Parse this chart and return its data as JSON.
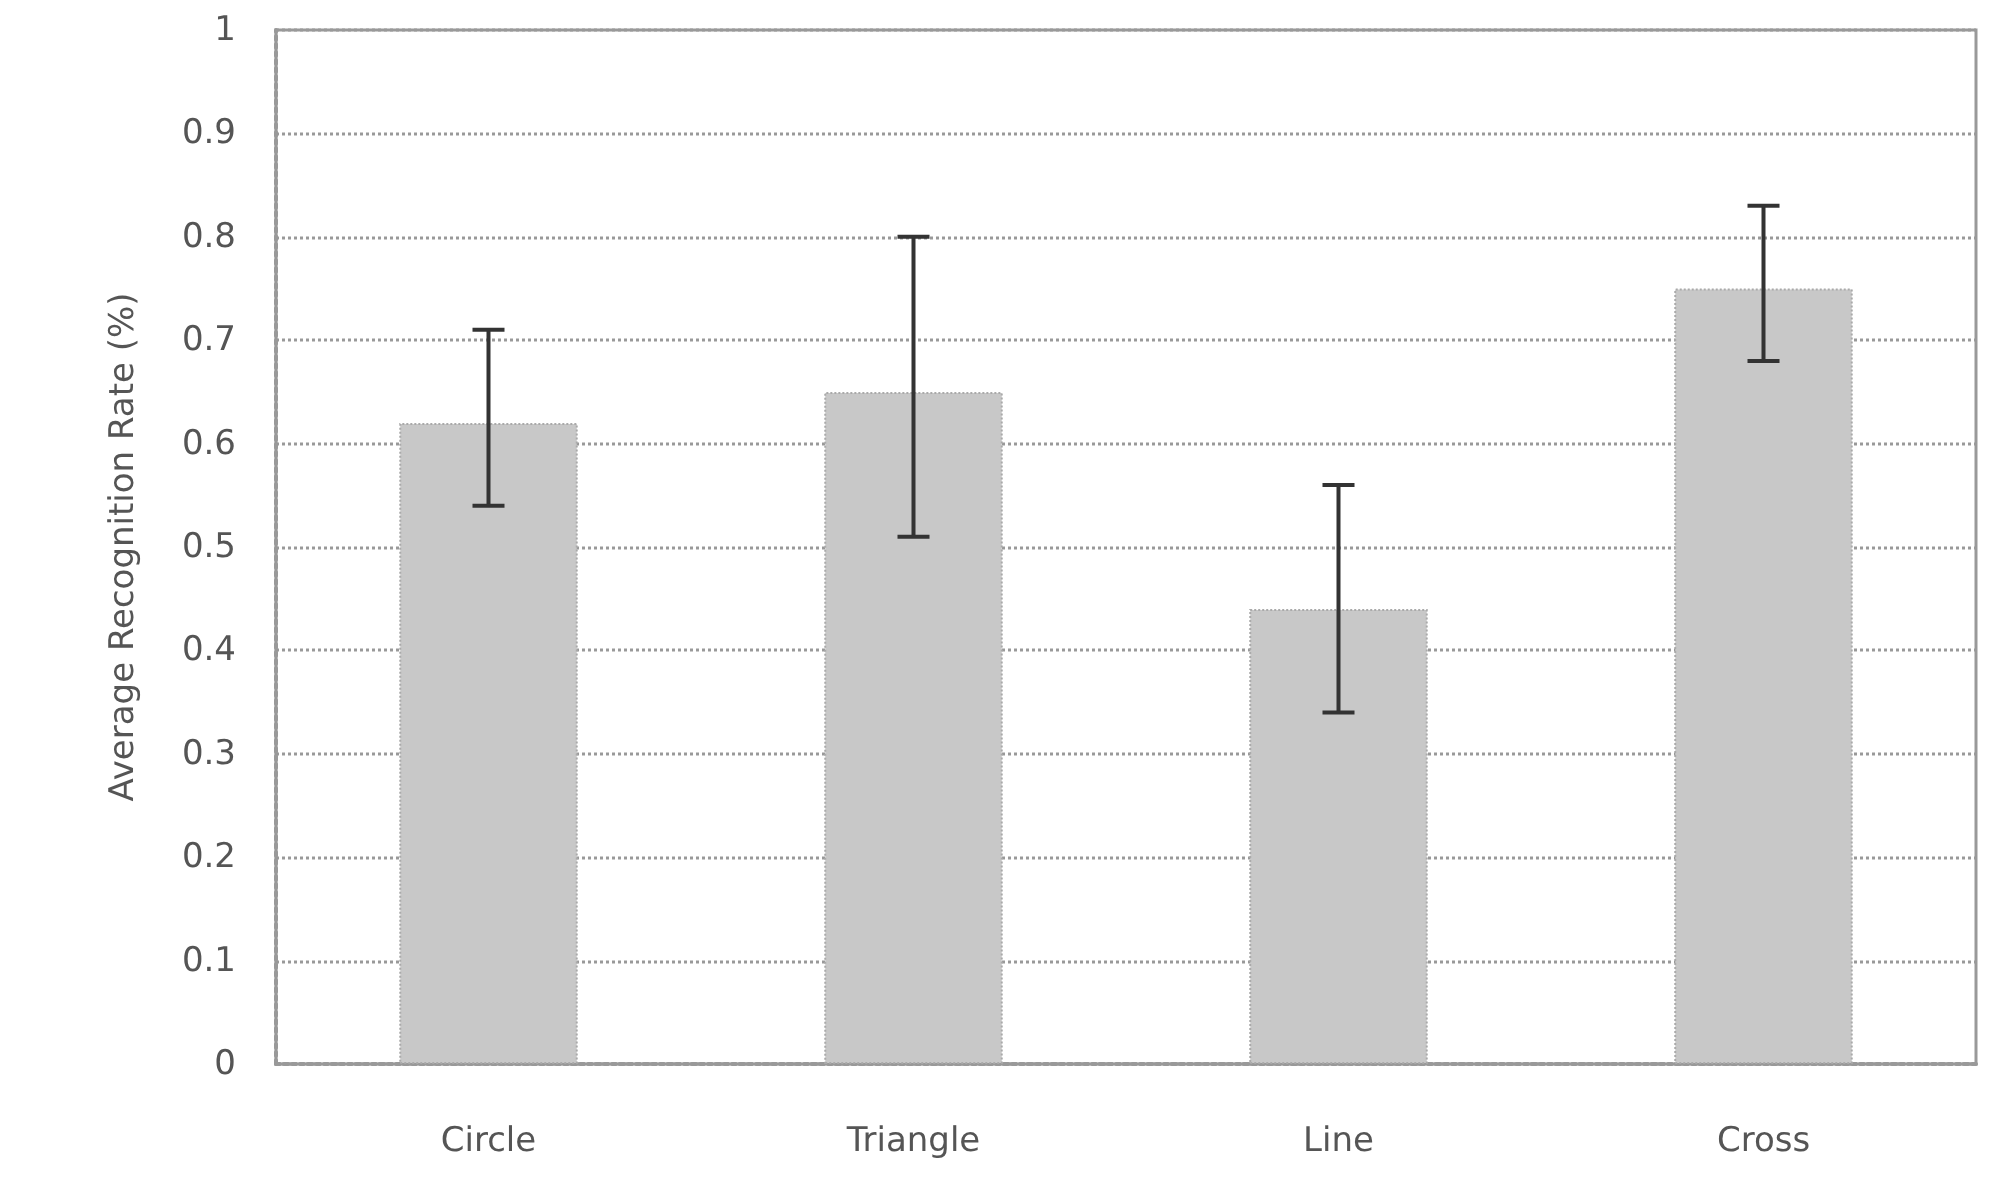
{
  "chart_data": {
    "type": "bar",
    "ylabel": "Average Recognition Rate (%)",
    "categories": [
      "Circle",
      "Triangle",
      "Line",
      "Cross"
    ],
    "values": [
      0.62,
      0.65,
      0.44,
      0.75
    ],
    "errors": [
      [
        0.54,
        0.71
      ],
      [
        0.51,
        0.8
      ],
      [
        0.34,
        0.56
      ],
      [
        0.68,
        0.83
      ]
    ],
    "color": "#c8c8c8",
    "ylim": [
      0,
      1
    ],
    "yticks": [
      0,
      0.1,
      0.2,
      0.3,
      0.4,
      0.5,
      0.6,
      0.7,
      0.8,
      0.9,
      1
    ],
    "grid": "y"
  }
}
